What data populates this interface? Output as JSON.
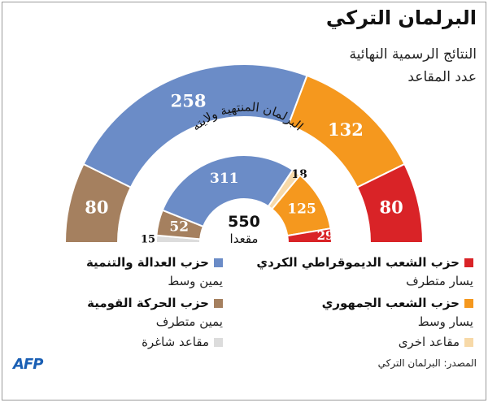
{
  "header": {
    "title": "البرلمان التركي",
    "subtitle": "النتائج الرسمية النهائية",
    "unit": "عدد المقاعد"
  },
  "chart_data": {
    "type": "pie",
    "layout": "semicircle",
    "outer": {
      "slices": [
        {
          "value": 80,
          "color": "#a5805f",
          "label": "80"
        },
        {
          "value": 258,
          "color": "#6b8cc7",
          "label": "258"
        },
        {
          "value": 132,
          "color": "#f5981e",
          "label": "132"
        },
        {
          "value": 80,
          "color": "#d92327",
          "label": "80"
        }
      ]
    },
    "inner": {
      "title": "البرلمان المنتهية ولايته",
      "total": "550",
      "total_label": "مقعدا",
      "slices": [
        {
          "value": 15,
          "color": "#dcdcdc",
          "label": "15"
        },
        {
          "value": 52,
          "color": "#a5805f",
          "label": "52"
        },
        {
          "value": 311,
          "color": "#6b8cc7",
          "label": "311"
        },
        {
          "value": 18,
          "color": "#f7d9a8",
          "label": "18"
        },
        {
          "value": 125,
          "color": "#f5981e",
          "label": "125"
        },
        {
          "value": 29,
          "color": "#d92327",
          "label": "29"
        }
      ]
    }
  },
  "legend": {
    "items": [
      {
        "key": "hdp",
        "name": "حزب الشعب الديموقراطي الكردي",
        "desc": "يسار متطرف",
        "color": "#d92327"
      },
      {
        "key": "chp",
        "name": "حزب الشعب الجمهوري",
        "desc": "يسار وسط",
        "color": "#f5981e"
      },
      {
        "key": "other",
        "name": "",
        "desc": "مقاعد اخرى",
        "color": "#f7d9a8"
      },
      {
        "key": "akp",
        "name": "حزب العدالة والتنمية",
        "desc": "يمين وسط",
        "color": "#6b8cc7"
      },
      {
        "key": "mhp",
        "name": "حزب الحركة القومية",
        "desc": "يمين متطرف",
        "color": "#a5805f"
      },
      {
        "key": "vacant",
        "name": "",
        "desc": "مقاعد شاغرة",
        "color": "#dcdcdc"
      }
    ]
  },
  "footer": {
    "logo": "AFP",
    "source": "المصدر: البرلمان التركي"
  }
}
